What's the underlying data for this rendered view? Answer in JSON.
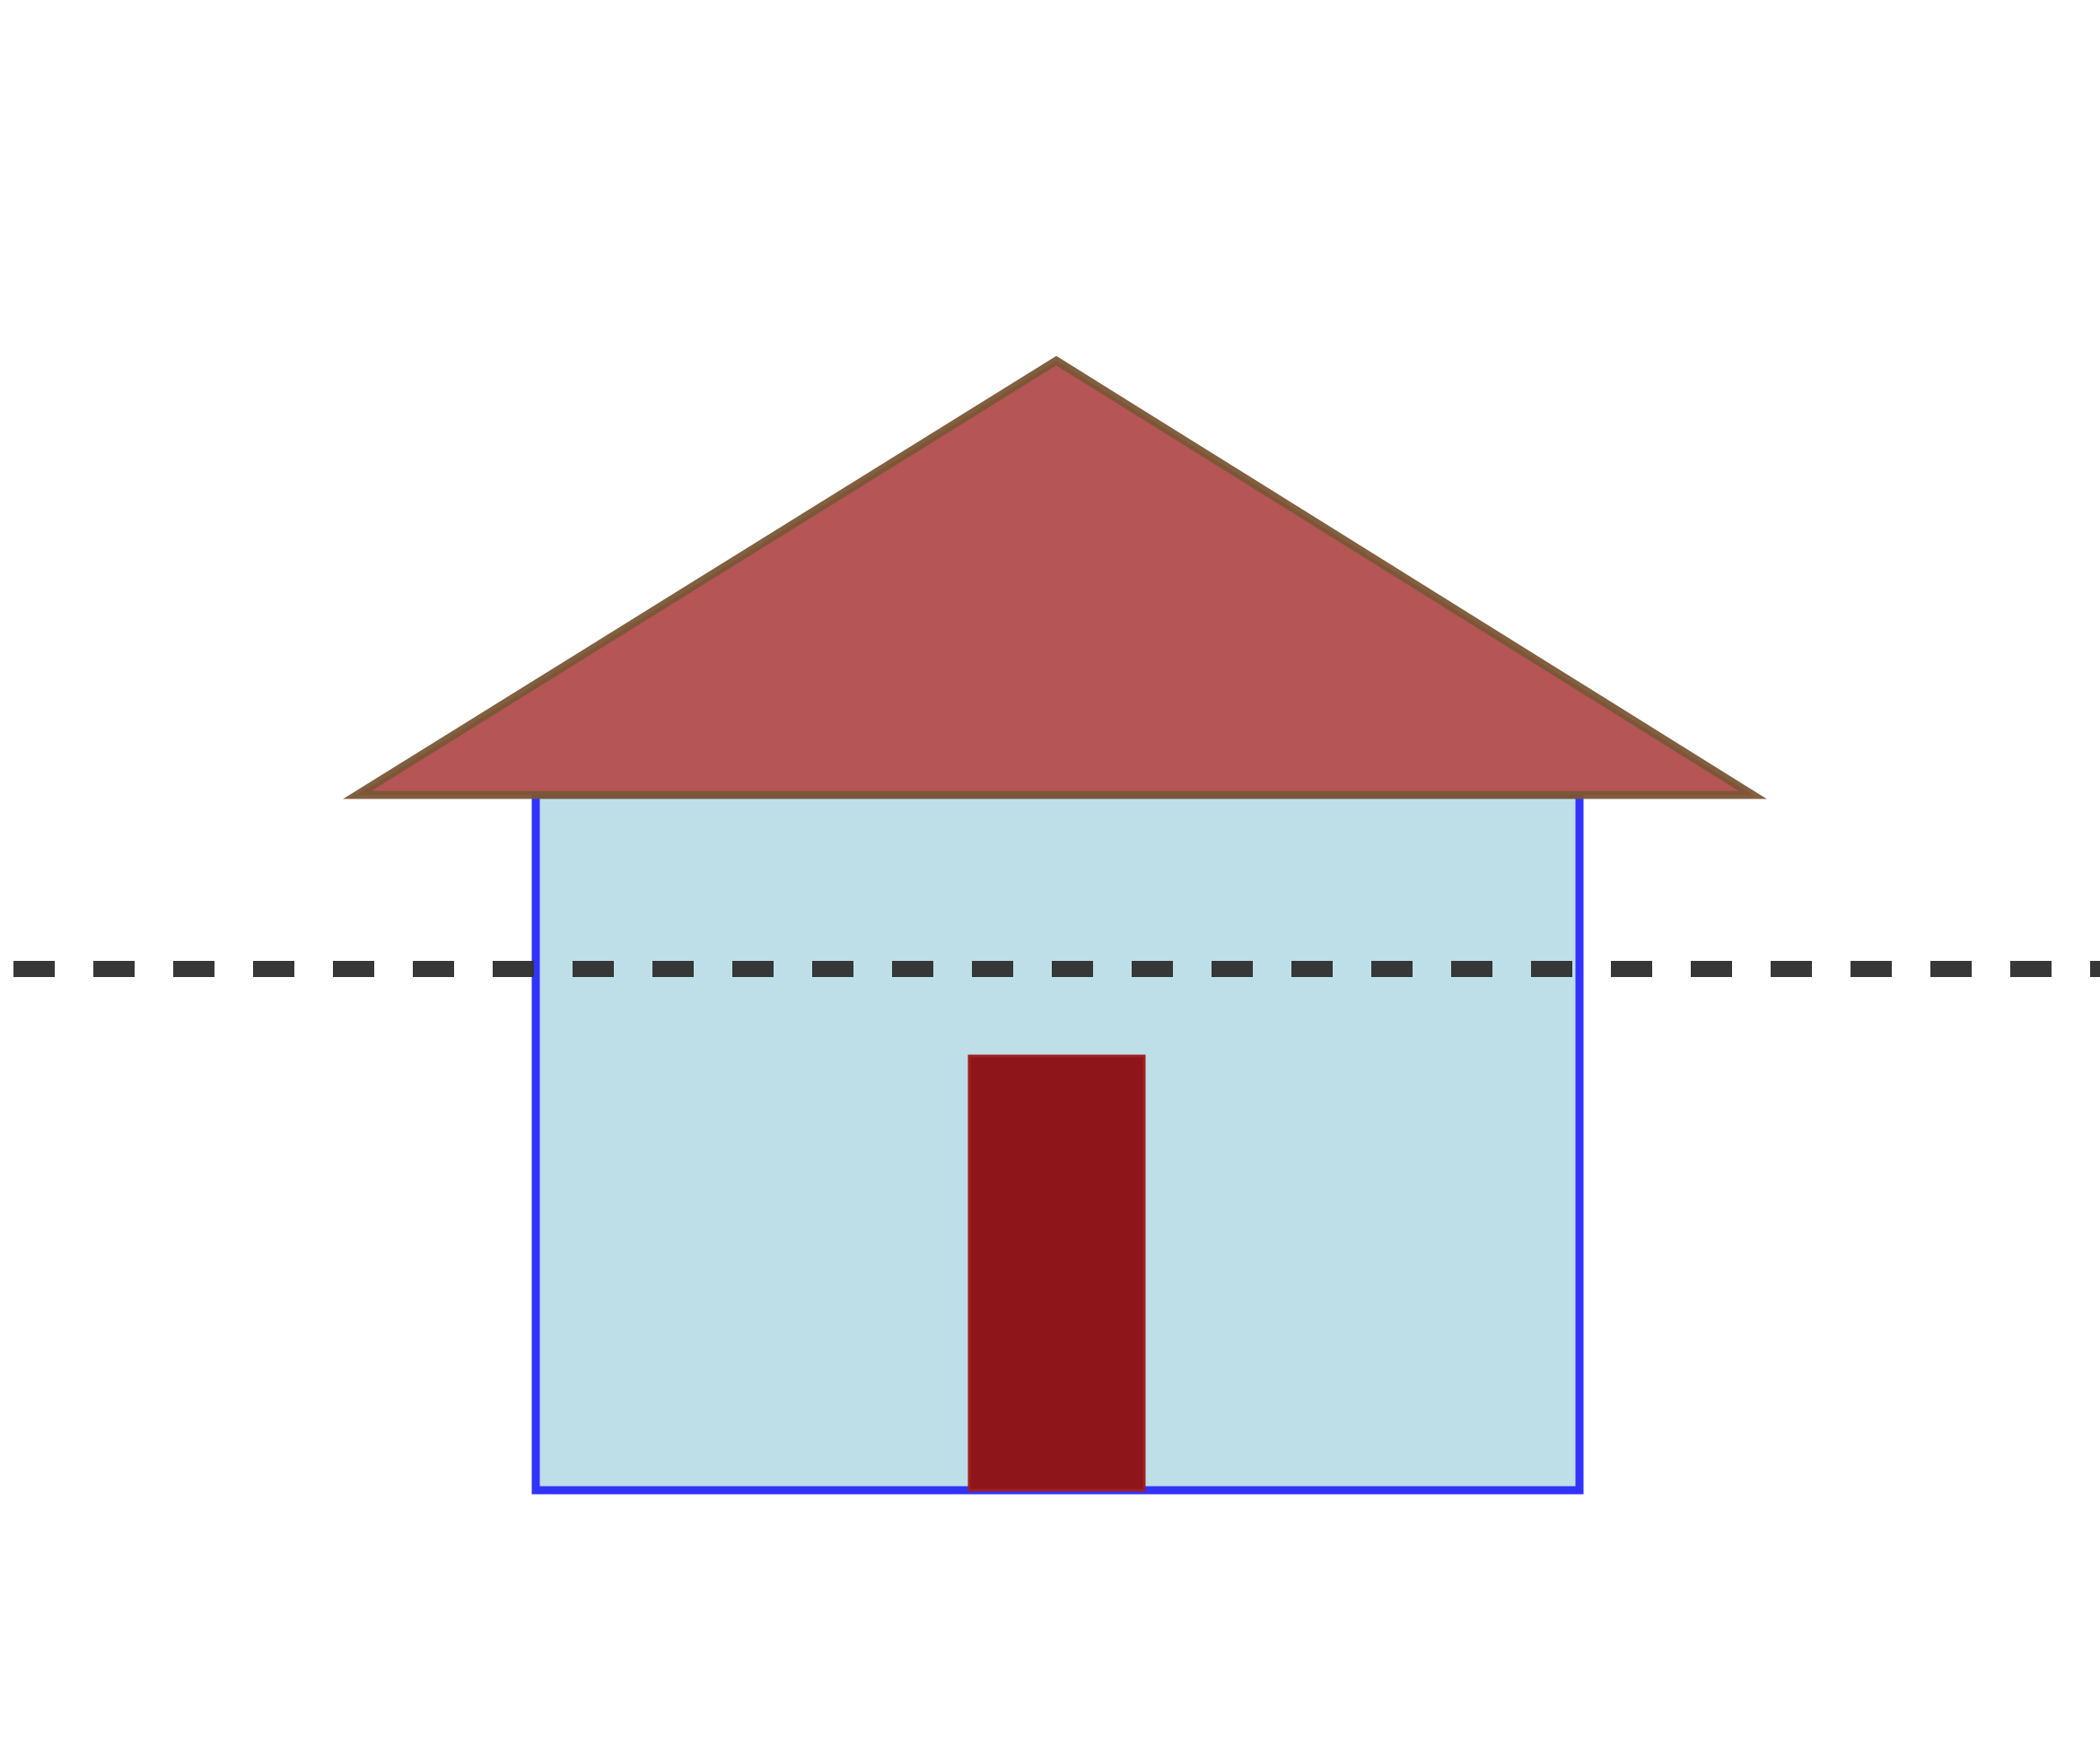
{
  "diagram": {
    "background": "#ffffff",
    "shapes": [
      {
        "id": "roof",
        "kind": "triangle",
        "fill": "#b55555",
        "stroke": "#7a5636"
      },
      {
        "id": "wall",
        "kind": "rectangle",
        "fill": "#bfdfe8",
        "stroke": "#3333ff"
      },
      {
        "id": "door",
        "kind": "rectangle",
        "fill": "#8e151a",
        "stroke": "#a02020"
      },
      {
        "id": "dashed-line",
        "kind": "line",
        "stroke": "#333333",
        "style": "dashed"
      }
    ]
  }
}
